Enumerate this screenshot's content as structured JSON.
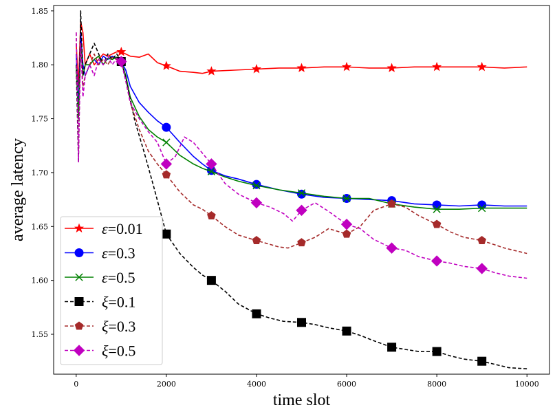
{
  "chart_data": {
    "type": "line",
    "title": "",
    "xlabel": "time slot",
    "ylabel": "average latency",
    "xlim": [
      -500,
      10500
    ],
    "ylim": [
      1.513,
      1.855
    ],
    "xticks": [
      0,
      2000,
      4000,
      6000,
      8000,
      10000
    ],
    "xtick_labels": [
      "0",
      "2000",
      "4000",
      "6000",
      "8000",
      "10000"
    ],
    "yticks": [
      1.55,
      1.6,
      1.65,
      1.7,
      1.75,
      1.8,
      1.85
    ],
    "ytick_labels": [
      "1.55",
      "1.60",
      "1.65",
      "1.70",
      "1.75",
      "1.80",
      "1.85"
    ],
    "legend_position": "lower-left",
    "series": [
      {
        "name": "ε=0.01",
        "symbol": "ε",
        "value_label": "=0.01",
        "color": "#ff0000",
        "marker": "star",
        "dash": "solid",
        "x": [
          0,
          50,
          100,
          150,
          200,
          300,
          400,
          500,
          600,
          700,
          800,
          900,
          1000,
          1200,
          1400,
          1600,
          1800,
          2000,
          2300,
          2600,
          2800,
          3000,
          3500,
          4000,
          4500,
          5000,
          5500,
          6000,
          6500,
          7000,
          7500,
          8000,
          8500,
          9000,
          9500,
          10000
        ],
        "y": [
          1.82,
          1.78,
          1.84,
          1.83,
          1.8,
          1.81,
          1.8,
          1.805,
          1.81,
          1.808,
          1.81,
          1.812,
          1.812,
          1.808,
          1.807,
          1.81,
          1.802,
          1.799,
          1.794,
          1.793,
          1.792,
          1.794,
          1.795,
          1.796,
          1.797,
          1.797,
          1.798,
          1.798,
          1.797,
          1.797,
          1.798,
          1.798,
          1.798,
          1.798,
          1.797,
          1.798
        ],
        "marker_x": [
          1000,
          2000,
          3000,
          4000,
          5000,
          6000,
          7000,
          8000,
          9000
        ],
        "marker_y": [
          1.812,
          1.799,
          1.794,
          1.796,
          1.797,
          1.798,
          1.797,
          1.798,
          1.798
        ]
      },
      {
        "name": "ε=0.3",
        "symbol": "ε",
        "value_label": "=0.3",
        "color": "#0000ff",
        "marker": "circle",
        "dash": "solid",
        "x": [
          0,
          50,
          100,
          150,
          200,
          300,
          400,
          500,
          600,
          700,
          800,
          900,
          1000,
          1100,
          1200,
          1400,
          1600,
          1800,
          2000,
          2300,
          2600,
          2800,
          3000,
          3300,
          3600,
          4000,
          4500,
          5000,
          5500,
          6000,
          6500,
          7000,
          7500,
          8000,
          8500,
          9000,
          9500,
          10000
        ],
        "y": [
          1.81,
          1.76,
          1.83,
          1.8,
          1.79,
          1.8,
          1.805,
          1.8,
          1.808,
          1.805,
          1.808,
          1.806,
          1.803,
          1.795,
          1.78,
          1.765,
          1.756,
          1.748,
          1.742,
          1.728,
          1.715,
          1.708,
          1.702,
          1.697,
          1.694,
          1.689,
          1.684,
          1.68,
          1.677,
          1.676,
          1.675,
          1.674,
          1.671,
          1.67,
          1.669,
          1.67,
          1.669,
          1.669
        ],
        "marker_x": [
          1000,
          2000,
          3000,
          4000,
          5000,
          6000,
          7000,
          8000,
          9000
        ],
        "marker_y": [
          1.803,
          1.742,
          1.702,
          1.689,
          1.68,
          1.676,
          1.674,
          1.67,
          1.67
        ]
      },
      {
        "name": "ε=0.5",
        "symbol": "ε",
        "value_label": "=0.5",
        "color": "#008000",
        "marker": "x",
        "dash": "solid",
        "x": [
          0,
          50,
          100,
          150,
          200,
          300,
          400,
          500,
          600,
          700,
          800,
          900,
          1000,
          1100,
          1200,
          1400,
          1600,
          1800,
          2000,
          2300,
          2600,
          2800,
          3000,
          3300,
          3600,
          4000,
          4500,
          5000,
          5500,
          6000,
          6500,
          7000,
          7500,
          8000,
          8500,
          9000,
          9500,
          10000
        ],
        "y": [
          1.8,
          1.75,
          1.82,
          1.79,
          1.8,
          1.8,
          1.805,
          1.808,
          1.8,
          1.806,
          1.805,
          1.807,
          1.803,
          1.79,
          1.77,
          1.752,
          1.74,
          1.733,
          1.728,
          1.716,
          1.708,
          1.704,
          1.701,
          1.696,
          1.692,
          1.688,
          1.684,
          1.681,
          1.678,
          1.676,
          1.676,
          1.671,
          1.668,
          1.666,
          1.666,
          1.667,
          1.667,
          1.667
        ],
        "marker_x": [
          1000,
          2000,
          3000,
          4000,
          5000,
          6000,
          7000,
          8000,
          9000
        ],
        "marker_y": [
          1.803,
          1.728,
          1.701,
          1.688,
          1.681,
          1.676,
          1.671,
          1.666,
          1.667
        ]
      },
      {
        "name": "ξ=0.1",
        "symbol": "ξ",
        "value_label": "=0.1",
        "color": "#000000",
        "marker": "square",
        "dash": "5,3",
        "x": [
          0,
          50,
          100,
          150,
          200,
          300,
          400,
          500,
          600,
          700,
          800,
          900,
          1000,
          1100,
          1200,
          1300,
          1500,
          1700,
          2000,
          2300,
          2600,
          2800,
          3000,
          3300,
          3600,
          4000,
          4300,
          4600,
          5000,
          5300,
          5600,
          6000,
          6300,
          6600,
          7000,
          7300,
          7600,
          8000,
          8300,
          8600,
          9000,
          9300,
          9600,
          10000
        ],
        "y": [
          1.8,
          1.71,
          1.85,
          1.79,
          1.8,
          1.81,
          1.82,
          1.81,
          1.8,
          1.81,
          1.805,
          1.81,
          1.803,
          1.788,
          1.768,
          1.748,
          1.72,
          1.69,
          1.643,
          1.625,
          1.612,
          1.605,
          1.6,
          1.59,
          1.578,
          1.569,
          1.565,
          1.562,
          1.561,
          1.559,
          1.556,
          1.553,
          1.549,
          1.544,
          1.538,
          1.536,
          1.534,
          1.534,
          1.53,
          1.527,
          1.525,
          1.522,
          1.519,
          1.518
        ],
        "marker_x": [
          1000,
          2000,
          3000,
          4000,
          5000,
          6000,
          7000,
          8000,
          9000
        ],
        "marker_y": [
          1.803,
          1.643,
          1.6,
          1.569,
          1.561,
          1.553,
          1.538,
          1.534,
          1.525
        ]
      },
      {
        "name": "ξ=0.3",
        "symbol": "ξ",
        "value_label": "=0.3",
        "color": "#a52a2a",
        "marker": "pentagon",
        "dash": "5,3",
        "x": [
          0,
          50,
          100,
          150,
          200,
          300,
          400,
          500,
          600,
          700,
          800,
          900,
          1000,
          1100,
          1200,
          1400,
          1600,
          1800,
          2000,
          2300,
          2600,
          2800,
          3000,
          3300,
          3600,
          4000,
          4500,
          4700,
          5000,
          5300,
          5600,
          6000,
          6300,
          6600,
          7000,
          7300,
          7600,
          8000,
          8300,
          8600,
          9000,
          9500,
          10000
        ],
        "y": [
          1.83,
          1.72,
          1.82,
          1.78,
          1.79,
          1.8,
          1.81,
          1.8,
          1.805,
          1.8,
          1.807,
          1.805,
          1.803,
          1.785,
          1.765,
          1.74,
          1.72,
          1.708,
          1.698,
          1.682,
          1.67,
          1.666,
          1.66,
          1.65,
          1.642,
          1.637,
          1.631,
          1.63,
          1.635,
          1.64,
          1.648,
          1.643,
          1.65,
          1.665,
          1.671,
          1.668,
          1.66,
          1.652,
          1.645,
          1.64,
          1.637,
          1.63,
          1.625
        ],
        "marker_x": [
          2000,
          3000,
          4000,
          5000,
          6000,
          7000,
          8000,
          9000
        ],
        "marker_y": [
          1.698,
          1.66,
          1.637,
          1.635,
          1.643,
          1.671,
          1.652,
          1.637
        ]
      },
      {
        "name": "ξ=0.5",
        "symbol": "ξ",
        "value_label": "=0.5",
        "color": "#c000c0",
        "marker": "diamond",
        "dash": "5,3",
        "x": [
          0,
          50,
          100,
          150,
          200,
          300,
          400,
          500,
          600,
          700,
          800,
          900,
          1000,
          1100,
          1200,
          1400,
          1600,
          1800,
          2000,
          2200,
          2400,
          2600,
          2800,
          3000,
          3300,
          3600,
          4000,
          4300,
          4600,
          4800,
          5000,
          5300,
          5600,
          6000,
          6300,
          6600,
          7000,
          7300,
          7600,
          8000,
          8300,
          8600,
          9000,
          9300,
          9600,
          10000
        ],
        "y": [
          1.83,
          1.71,
          1.82,
          1.77,
          1.79,
          1.8,
          1.79,
          1.805,
          1.8,
          1.808,
          1.8,
          1.806,
          1.803,
          1.785,
          1.765,
          1.75,
          1.738,
          1.728,
          1.708,
          1.715,
          1.733,
          1.728,
          1.718,
          1.708,
          1.69,
          1.68,
          1.672,
          1.668,
          1.662,
          1.655,
          1.665,
          1.672,
          1.664,
          1.652,
          1.648,
          1.638,
          1.63,
          1.628,
          1.622,
          1.618,
          1.616,
          1.613,
          1.611,
          1.607,
          1.604,
          1.602
        ],
        "marker_x": [
          1000,
          2000,
          3000,
          4000,
          5000,
          6000,
          7000,
          8000,
          9000
        ],
        "marker_y": [
          1.803,
          1.708,
          1.708,
          1.672,
          1.665,
          1.652,
          1.63,
          1.618,
          1.611
        ]
      }
    ]
  }
}
